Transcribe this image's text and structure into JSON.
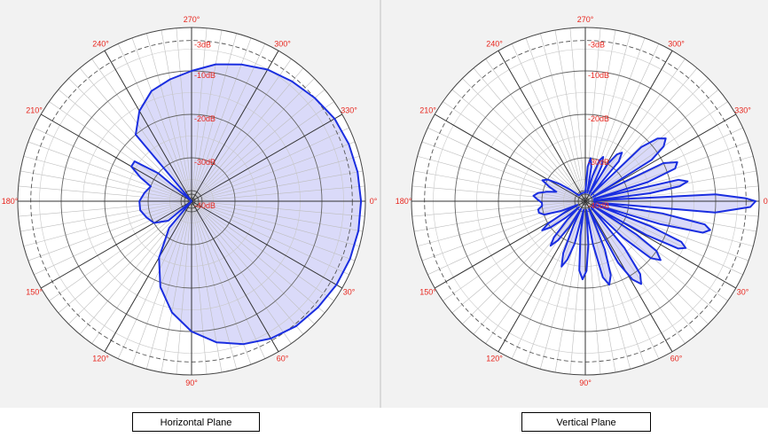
{
  "chart_data": [
    {
      "type": "polar",
      "radial_labels": [
        "-3dB",
        "-10dB",
        "-20dB",
        "-30dB",
        "-40dB"
      ],
      "angle_labels": [
        "0°",
        "30°",
        "60°",
        "90°",
        "120°",
        "150°",
        "180°",
        "210°",
        "240°",
        "270°",
        "300°",
        "330°"
      ],
      "angle_label_values": [
        0,
        30,
        60,
        90,
        120,
        150,
        180,
        210,
        240,
        270,
        300,
        330
      ],
      "series": [
        {
          "angles": [
            0,
            10,
            20,
            30,
            40,
            50,
            60,
            70,
            80,
            90,
            100,
            110,
            120,
            130,
            135,
            140,
            150,
            160,
            170,
            180,
            190,
            200,
            205,
            210,
            215,
            220,
            225,
            230,
            240,
            250,
            260,
            270,
            280,
            290,
            300,
            310,
            320,
            330,
            340,
            350,
            360
          ],
          "values": [
            -1,
            -1,
            -1.2,
            -1.5,
            -2,
            -2.5,
            -3.5,
            -5,
            -7,
            -10,
            -14,
            -19,
            -25,
            -32,
            -40,
            -33,
            -30,
            -29,
            -28,
            -28,
            -29,
            -30,
            -27,
            -24,
            -24,
            -30,
            -40,
            -20,
            -16,
            -13,
            -11.5,
            -10,
            -8,
            -6.5,
            -5,
            -4,
            -3,
            -2,
            -1.5,
            -1.2,
            -1
          ]
        }
      ],
      "caption": "Horizontal Plane",
      "db_levels": [
        -3,
        -10,
        -20,
        -30,
        -40
      ],
      "rlim": [
        -40,
        0
      ],
      "fill_color": "#d6d6f8",
      "line_color": "#1a2ee0"
    },
    {
      "type": "polar",
      "radial_labels": [
        "-3dB",
        "-10dB",
        "-20dB",
        "-30dB",
        "-40dB"
      ],
      "angle_labels": [
        "0°",
        "30°",
        "60°",
        "90°",
        "120°",
        "150°",
        "180°",
        "210°",
        "240°",
        "270°",
        "300°",
        "330°"
      ],
      "angle_label_values": [
        0,
        30,
        60,
        90,
        120,
        150,
        180,
        210,
        240,
        270,
        300,
        330
      ],
      "series": [
        {
          "angles": [
            0,
            2,
            5,
            7,
            9,
            11,
            13,
            15,
            17,
            19,
            21,
            23,
            25,
            27,
            29,
            31,
            33,
            35,
            38,
            41,
            44,
            47,
            50,
            53,
            56,
            59,
            62,
            65,
            68,
            71,
            74,
            77,
            80,
            83,
            86,
            89,
            92,
            95,
            98,
            101,
            104,
            107,
            110,
            113,
            116,
            119,
            122,
            125,
            128,
            131,
            134,
            137,
            140,
            143,
            146,
            149,
            152,
            155,
            158,
            162,
            166,
            170,
            174,
            178,
            182,
            186,
            190,
            194,
            198,
            202,
            206,
            210,
            214,
            218,
            222,
            226,
            230,
            234,
            238,
            242,
            246,
            250,
            254,
            258,
            262,
            266,
            270,
            274,
            277,
            280,
            283,
            286,
            289,
            292,
            295,
            298,
            301,
            304,
            307,
            310,
            313,
            316,
            319,
            322,
            325,
            328,
            331,
            334,
            337,
            340,
            343,
            345,
            347,
            349,
            351,
            353,
            355,
            357,
            359,
            360
          ],
          "values": [
            -0.8,
            -2,
            -10,
            -38,
            -22,
            -12,
            -10.5,
            -12,
            -22,
            -38,
            -24,
            -16,
            -14.5,
            -16,
            -24,
            -38,
            -26,
            -20,
            -18,
            -20,
            -28,
            -38,
            -26,
            -19,
            -17,
            -19,
            -24,
            -38,
            -28,
            -22,
            -20,
            -22,
            -30,
            -38,
            -30,
            -24,
            -22,
            -24,
            -32,
            -38,
            -30,
            -26,
            -24,
            -27,
            -34,
            -38,
            -33,
            -29,
            -27,
            -29,
            -34,
            -38,
            -34,
            -30,
            -28,
            -30,
            -35,
            -38,
            -34,
            -30,
            -29,
            -29,
            -30,
            -30,
            -29,
            -28,
            -29,
            -31,
            -33,
            -31,
            -29,
            -30,
            -33,
            -36,
            -38,
            -38,
            -38,
            -38,
            -38,
            -38,
            -38,
            -38,
            -38,
            -38,
            -38,
            -38,
            -38,
            -32,
            -30,
            -32,
            -38,
            -34,
            -30,
            -29,
            -31,
            -38,
            -30,
            -27,
            -26,
            -28,
            -38,
            -22,
            -18,
            -16.5,
            -18,
            -22,
            -38,
            -20,
            -17,
            -18,
            -25,
            -38,
            -18,
            -16,
            -18,
            -25,
            -38,
            -10,
            -3,
            -0.8
          ]
        }
      ],
      "caption": "Vertical Plane",
      "db_levels": [
        -3,
        -10,
        -20,
        -30,
        -40
      ],
      "rlim": [
        -40,
        0
      ],
      "fill_color": "#d6d6f8",
      "line_color": "#1a2ee0"
    }
  ]
}
